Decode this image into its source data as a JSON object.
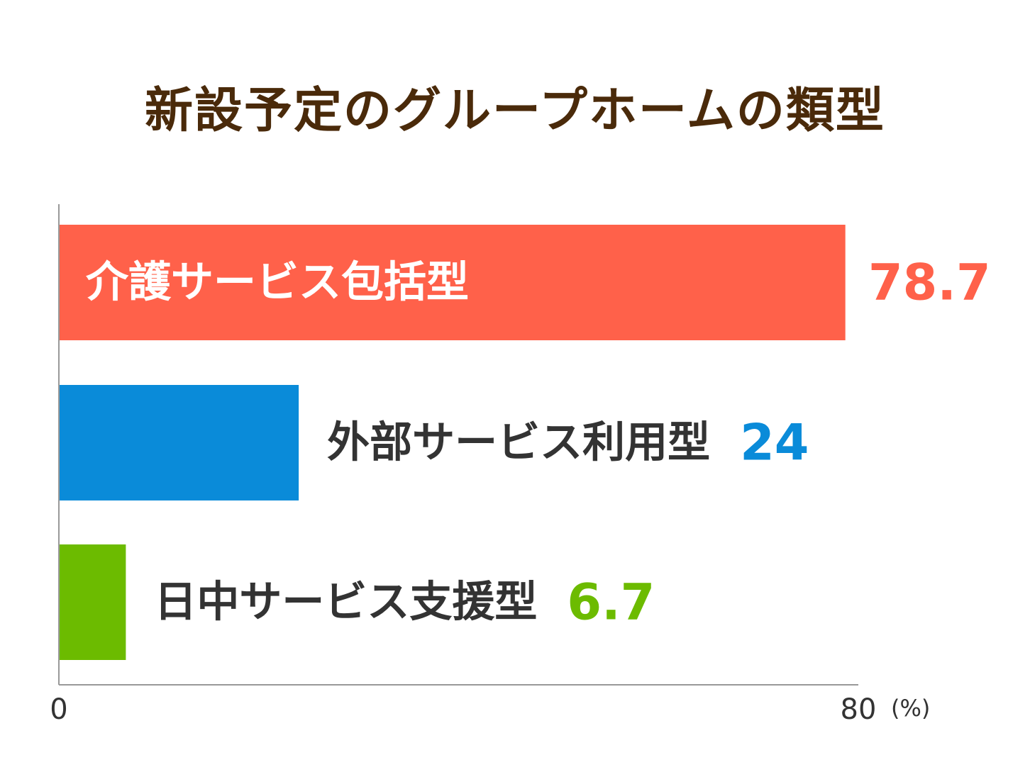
{
  "title": "新設予定のグループホームの類型",
  "chart_data": {
    "type": "bar",
    "orientation": "horizontal",
    "title": "新設予定のグループホームの類型",
    "categories": [
      "介護サービス包括型",
      "外部サービス利用型",
      "日中サービス支援型"
    ],
    "values": [
      78.7,
      24,
      6.7
    ],
    "value_labels": [
      "78.7",
      "24",
      "6.7"
    ],
    "colors": [
      "#ff614a",
      "#0a8bd9",
      "#6cbb00"
    ],
    "xlim": [
      0,
      80
    ],
    "x_ticks": [
      "0",
      "80"
    ],
    "unit": "(%)",
    "grid": false,
    "legend": "none"
  }
}
